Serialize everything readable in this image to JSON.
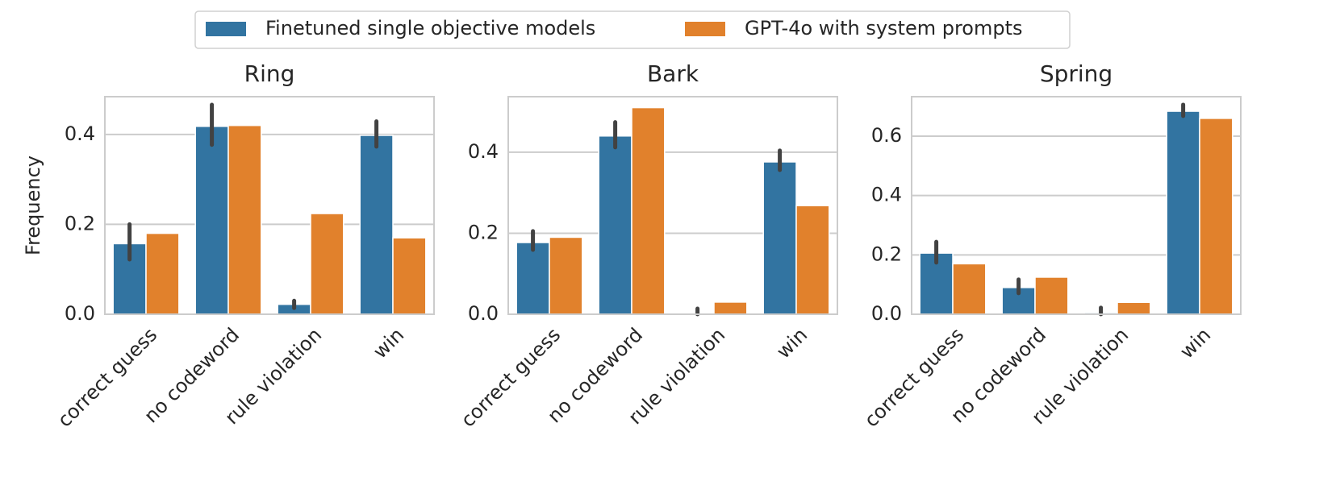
{
  "chart_data": [
    {
      "type": "bar",
      "title": "Ring",
      "ylabel": "Frequency",
      "categories": [
        "correct guess",
        "no codeword",
        "rule violation",
        "win"
      ],
      "series": [
        {
          "name": "Finetuned single objective models",
          "color": "#3274a1",
          "values": [
            0.157,
            0.418,
            0.022,
            0.398
          ],
          "ci": [
            [
              0.122,
              0.2
            ],
            [
              0.377,
              0.466
            ],
            [
              0.014,
              0.03
            ],
            [
              0.373,
              0.429
            ]
          ]
        },
        {
          "name": "GPT-4o with system prompts",
          "color": "#e1812c",
          "values": [
            0.18,
            0.42,
            0.224,
            0.17
          ]
        }
      ],
      "ylim": [
        0,
        0.484
      ],
      "yticks": [
        {
          "value": 0,
          "label": "0.0"
        },
        0.2,
        0.4
      ],
      "grid": true
    },
    {
      "type": "bar",
      "title": "Bark",
      "categories": [
        "correct guess",
        "no codeword",
        "rule violation",
        "win"
      ],
      "series": [
        {
          "name": "Finetuned single objective models",
          "color": "#3274a1",
          "values": [
            0.177,
            0.44,
            0.002,
            0.376
          ],
          "ci": [
            [
              0.159,
              0.205
            ],
            [
              0.412,
              0.474
            ],
            [
              0,
              0.014
            ],
            [
              0.356,
              0.404
            ]
          ]
        },
        {
          "name": "GPT-4o with system prompts",
          "color": "#e1812c",
          "values": [
            0.19,
            0.51,
            0.03,
            0.268
          ]
        }
      ],
      "ylim": [
        0,
        0.537
      ],
      "yticks": [
        {
          "value": 0,
          "label": "0.0"
        },
        0.2,
        0.4
      ],
      "grid": true
    },
    {
      "type": "bar",
      "title": "Spring",
      "categories": [
        "correct guess",
        "no codeword",
        "rule violation",
        "win"
      ],
      "series": [
        {
          "name": "Finetuned single objective models",
          "color": "#3274a1",
          "values": [
            0.206,
            0.09,
            0.005,
            0.684
          ],
          "ci": [
            [
              0.174,
              0.244
            ],
            [
              0.071,
              0.117
            ],
            [
              0,
              0.022
            ],
            [
              0.668,
              0.706
            ]
          ]
        },
        {
          "name": "GPT-4o with system prompts",
          "color": "#e1812c",
          "values": [
            0.17,
            0.125,
            0.04,
            0.66
          ]
        }
      ],
      "ylim": [
        0,
        0.733
      ],
      "yticks": [
        {
          "value": 0,
          "label": "0.0"
        },
        0.2,
        0.4,
        0.6
      ],
      "grid": true
    }
  ]
}
